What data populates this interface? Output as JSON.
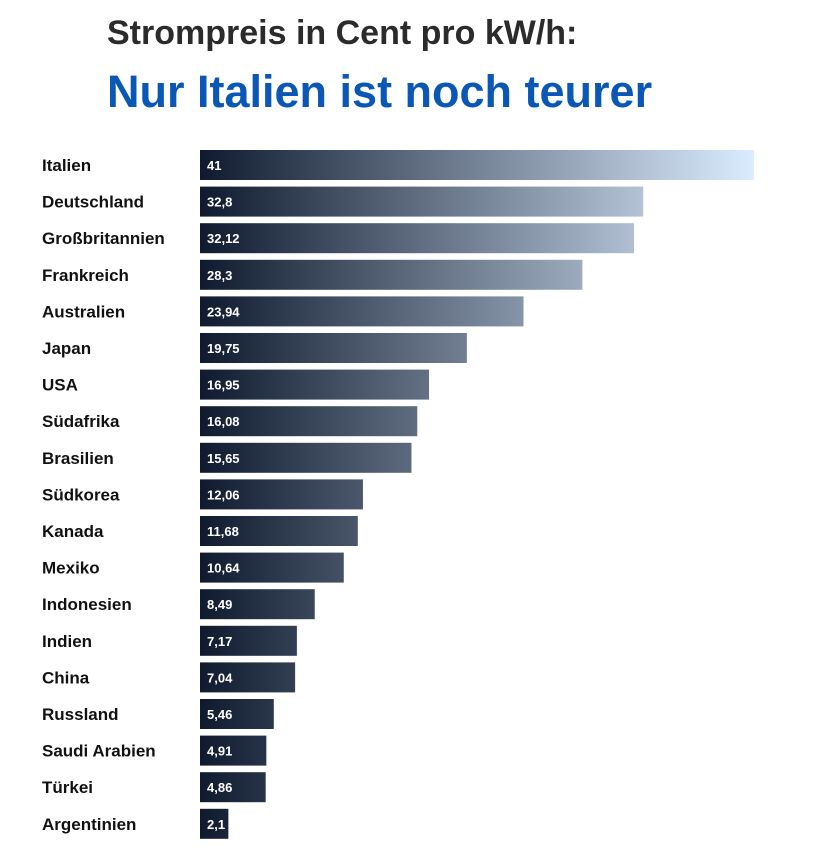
{
  "chart_data": {
    "type": "bar",
    "orientation": "horizontal",
    "title": "Strompreis in Cent pro kW/h:",
    "subtitle": "Nur Italien ist noch teurer",
    "categories": [
      "Italien",
      "Deutschland",
      "Großbritannien",
      "Frankreich",
      "Australien",
      "Japan",
      "USA",
      "Südafrika",
      "Brasilien",
      "Südkorea",
      "Kanada",
      "Mexiko",
      "Indonesien",
      "Indien",
      "China",
      "Russland",
      "Saudi Arabien",
      "Türkei",
      "Argentinien"
    ],
    "values": [
      41,
      32.8,
      32.12,
      28.3,
      23.94,
      19.75,
      16.95,
      16.08,
      15.65,
      12.06,
      11.68,
      10.64,
      8.49,
      7.17,
      7.04,
      5.46,
      4.91,
      4.86,
      2.1
    ],
    "value_labels": [
      "41",
      "32,8",
      "32,12",
      "28,3",
      "23,94",
      "19,75",
      "16,95",
      "16,08",
      "15,65",
      "12,06",
      "11,68",
      "10,64",
      "8,49",
      "7,17",
      "7,04",
      "5,46",
      "4,91",
      "4,86",
      "2,1"
    ],
    "xlim": [
      0,
      41
    ],
    "grid": false,
    "colors": {
      "bar_dark": "#0f1a2e",
      "bar_light": "#dcecff",
      "title": "#2b2b2b",
      "subtitle": "#0b57b5"
    }
  }
}
